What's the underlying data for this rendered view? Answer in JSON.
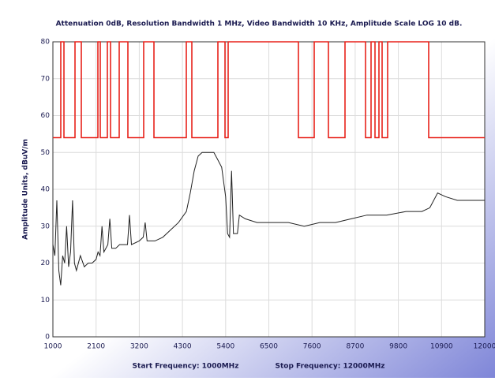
{
  "chart_data": {
    "type": "line",
    "title": "Attenuation 0dB, Resolution Bandwidth 1 MHz, Video Bandwidth 10 KHz, Amplitude Scale LOG 10 dB.",
    "y_label": "Amplitude Units, dBuV/m",
    "x_label_start": "Start Frequency: 1000MHz",
    "x_label_stop": "Stop Frequency: 12000MHz",
    "xlim": [
      1000,
      12000
    ],
    "xticks": [
      1000,
      2100,
      3200,
      4300,
      5400,
      6500,
      7600,
      8700,
      9800,
      10900,
      12000
    ],
    "ylim": [
      0,
      80
    ],
    "yticks": [
      0,
      10,
      20,
      30,
      40,
      50,
      60,
      70,
      80
    ],
    "grid": true,
    "series": [
      {
        "color": "#e8221b",
        "x": [
          1000,
          1201,
          1201,
          1282,
          1282,
          1563,
          1563,
          1724,
          1724,
          2146,
          2146,
          2206,
          2206,
          2387,
          2387,
          2468,
          2468,
          2689,
          2689,
          2910,
          2910,
          3312,
          3312,
          3574,
          3574,
          4398,
          4398,
          4539,
          4539,
          5203,
          5203,
          5384,
          5384,
          5464,
          5464,
          7254,
          7254,
          7656,
          7656,
          8018,
          8018,
          8440,
          8440,
          8963,
          8963,
          9104,
          9104,
          9204,
          9204,
          9305,
          9305,
          9385,
          9385,
          9526,
          9526,
          10572,
          10572,
          12000
        ],
        "values": [
          54,
          54,
          80,
          80,
          54,
          54,
          80,
          80,
          54,
          54,
          80,
          80,
          54,
          54,
          80,
          80,
          54,
          54,
          80,
          80,
          54,
          54,
          80,
          80,
          54,
          54,
          80,
          80,
          54,
          54,
          80,
          80,
          54,
          54,
          80,
          80,
          54,
          54,
          80,
          80,
          54,
          54,
          80,
          80,
          54,
          54,
          80,
          80,
          54,
          54,
          80,
          80,
          54,
          54,
          80,
          80,
          54,
          54
        ]
      },
      {
        "color": "#222222",
        "x": [
          1000,
          1050,
          1100,
          1150,
          1200,
          1250,
          1300,
          1350,
          1400,
          1450,
          1500,
          1550,
          1600,
          1700,
          1800,
          1900,
          2000,
          2100,
          2150,
          2200,
          2250,
          2300,
          2400,
          2450,
          2500,
          2600,
          2700,
          2900,
          2950,
          3000,
          3200,
          3300,
          3350,
          3400,
          3600,
          3800,
          4000,
          4200,
          4400,
          4500,
          4600,
          4700,
          4800,
          5000,
          5100,
          5200,
          5300,
          5400,
          5450,
          5500,
          5550,
          5600,
          5700,
          5750,
          5900,
          6200,
          6500,
          7000,
          7400,
          7800,
          8200,
          8600,
          9000,
          9500,
          10000,
          10400,
          10600,
          10800,
          11000,
          11300,
          11700,
          12000
        ],
        "values": [
          25,
          22,
          37,
          18,
          14,
          22,
          20,
          30,
          19,
          23,
          37,
          20,
          18,
          22,
          19,
          20,
          20,
          21,
          23,
          22,
          30,
          23,
          25,
          32,
          24,
          24,
          25,
          25,
          33,
          25,
          26,
          27,
          31,
          26,
          26,
          27,
          29,
          31,
          34,
          39,
          45,
          49,
          50,
          50,
          50,
          48,
          46,
          38,
          28,
          27,
          45,
          28,
          28,
          33,
          32,
          31,
          31,
          31,
          30,
          31,
          31,
          32,
          33,
          33,
          34,
          34,
          35,
          39,
          38,
          37,
          37,
          37
        ]
      }
    ]
  }
}
